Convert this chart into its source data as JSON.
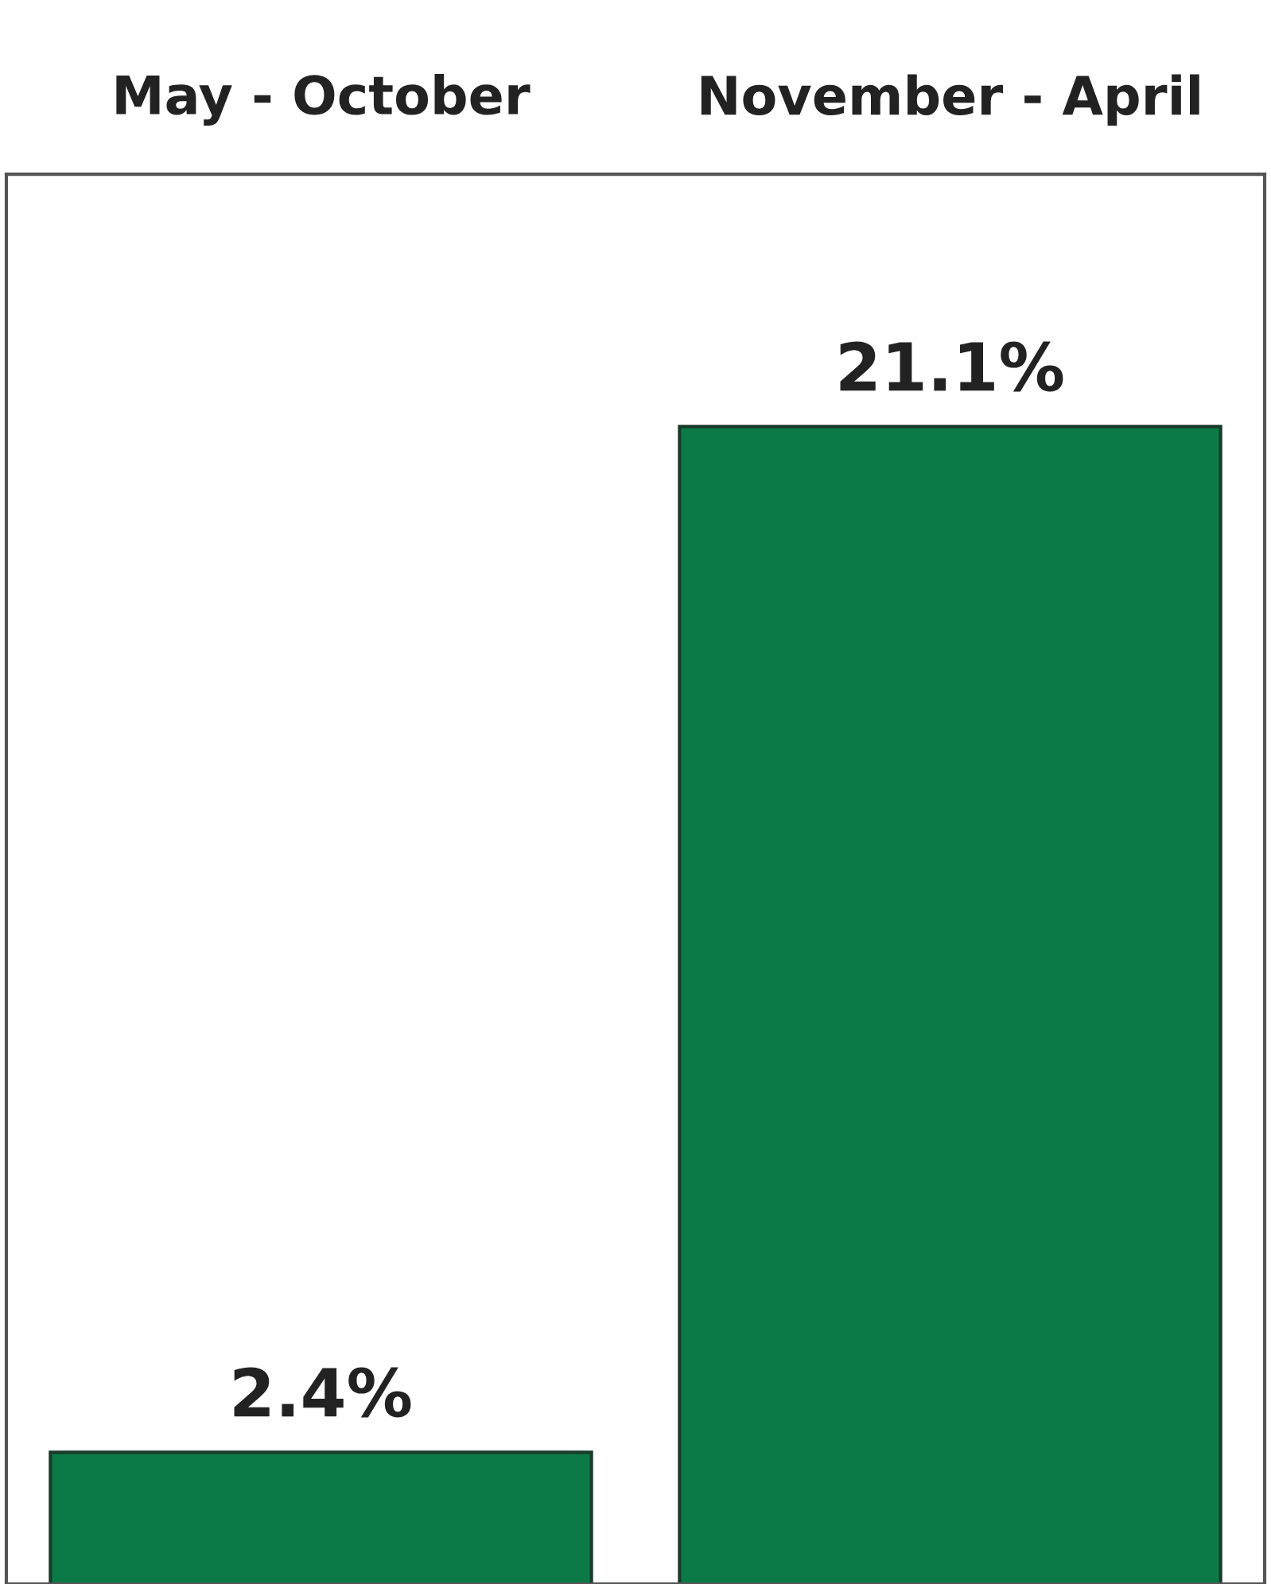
{
  "chart_data": {
    "type": "bar",
    "categories": [
      "May - October",
      "November - April"
    ],
    "values": [
      2.4,
      21.1
    ],
    "value_labels": [
      "2.4%",
      "21.1%"
    ],
    "color": "#0b7a46",
    "ylim": [
      0,
      25.7
    ],
    "grid": false,
    "legend": false
  }
}
